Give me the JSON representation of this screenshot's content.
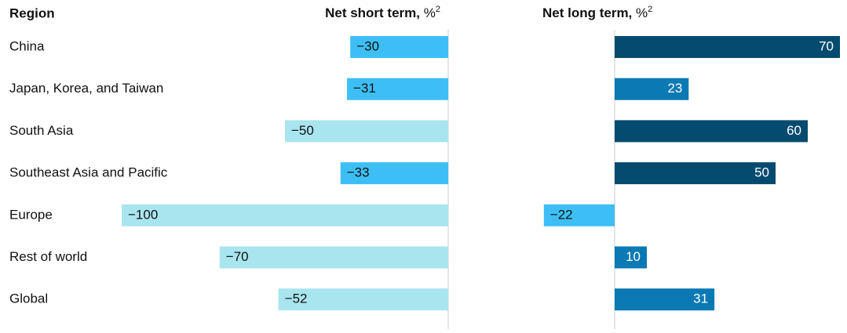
{
  "chart_data": [
    {
      "type": "bar",
      "title": "Net short term,",
      "unit": "%",
      "footnote": "2",
      "category_header": "Region",
      "categories": [
        "China",
        "Japan, Korea, and Taiwan",
        "South Asia",
        "Southeast Asia and Pacific",
        "Europe",
        "Rest of world",
        "Global"
      ],
      "values": [
        -30,
        -31,
        -50,
        -33,
        -100,
        -70,
        -52
      ],
      "value_labels": [
        "−30",
        "−31",
        "−50",
        "−33",
        "−100",
        "−70",
        "−52"
      ],
      "colors": [
        "#3dbff5",
        "#3dbff5",
        "#a9e5ef",
        "#3dbff5",
        "#a9e5ef",
        "#a9e5ef",
        "#a9e5ef"
      ],
      "xlim": [
        -100,
        0
      ]
    },
    {
      "type": "bar",
      "title": "Net long term,",
      "unit": "%",
      "footnote": "2",
      "values": [
        70,
        23,
        60,
        50,
        -22,
        10,
        31
      ],
      "value_labels": [
        "70",
        "23",
        "60",
        "50",
        "−22",
        "10",
        "31"
      ],
      "colors": [
        "#054b6f",
        "#0a79b4",
        "#054b6f",
        "#054b6f",
        "#3dbff5",
        "#0a79b4",
        "#0a79b4"
      ],
      "xlim": [
        -25,
        70
      ]
    }
  ]
}
